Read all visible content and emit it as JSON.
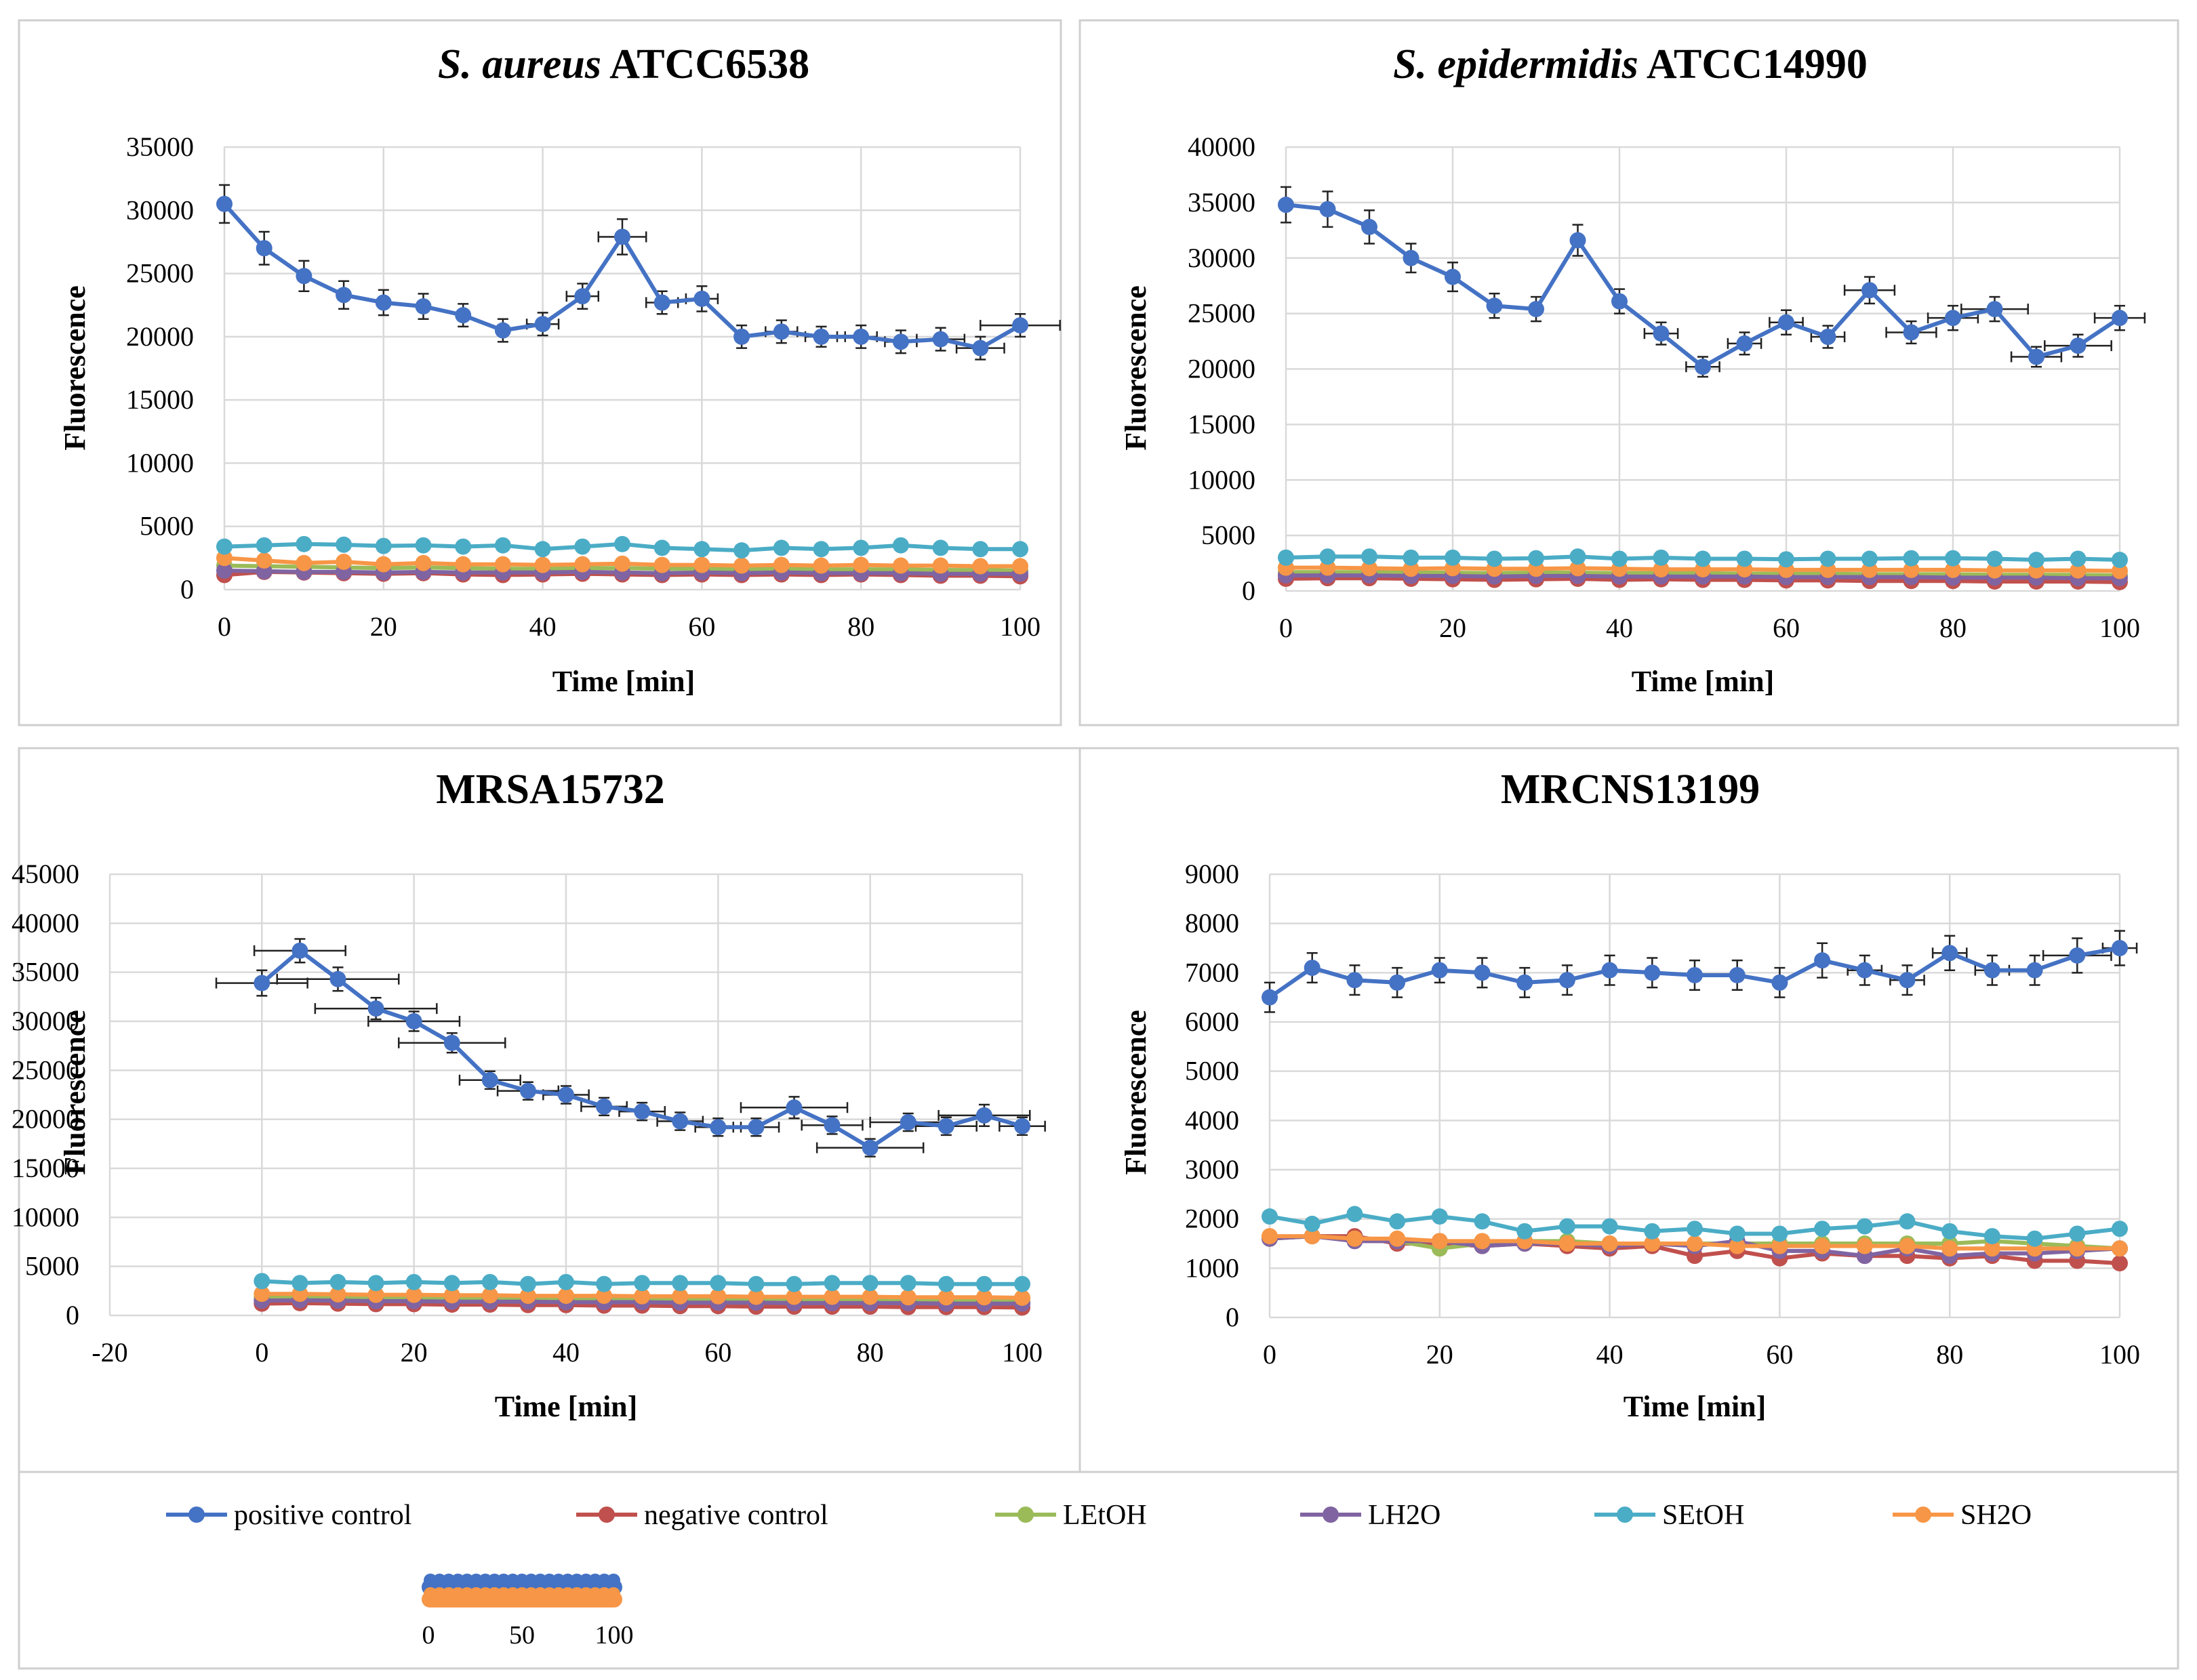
{
  "chart_data": [
    {
      "type": "line",
      "title_italic": "S. aureus",
      "title_rest": " ATCC6538",
      "xlabel": "Time [min]",
      "ylabel": "Fluorescence",
      "xlim": [
        0,
        100
      ],
      "ylim": [
        0,
        35000
      ],
      "xticks": [
        0,
        20,
        40,
        60,
        80,
        100
      ],
      "yticks": [
        0,
        5000,
        10000,
        15000,
        20000,
        25000,
        30000,
        35000
      ],
      "x": [
        0,
        5,
        10,
        15,
        20,
        25,
        30,
        35,
        40,
        45,
        50,
        55,
        60,
        65,
        70,
        75,
        80,
        85,
        90,
        95,
        100
      ],
      "series": [
        {
          "name": "negative control",
          "values": [
            1150,
            1400,
            1350,
            1300,
            1250,
            1300,
            1200,
            1150,
            1200,
            1250,
            1200,
            1150,
            1200,
            1150,
            1200,
            1150,
            1200,
            1150,
            1100,
            1100,
            1050
          ]
        },
        {
          "name": "LEtOH",
          "values": [
            1900,
            1850,
            1800,
            1750,
            1700,
            1750,
            1700,
            1650,
            1650,
            1700,
            1700,
            1650,
            1650,
            1600,
            1650,
            1600,
            1600,
            1600,
            1550,
            1550,
            1500
          ]
        },
        {
          "name": "LH2O",
          "values": [
            1500,
            1450,
            1400,
            1400,
            1350,
            1400,
            1350,
            1350,
            1350,
            1400,
            1350,
            1300,
            1350,
            1300,
            1350,
            1300,
            1300,
            1300,
            1250,
            1250,
            1250
          ]
        },
        {
          "name": "SH2O",
          "values": [
            2500,
            2300,
            2100,
            2200,
            2000,
            2100,
            2000,
            2000,
            1950,
            2000,
            2050,
            1950,
            1950,
            1900,
            1950,
            1900,
            1950,
            1900,
            1900,
            1850,
            1850
          ]
        },
        {
          "name": "SEtOH",
          "values": [
            3400,
            3500,
            3600,
            3550,
            3450,
            3500,
            3400,
            3500,
            3200,
            3400,
            3600,
            3300,
            3200,
            3100,
            3300,
            3200,
            3300,
            3500,
            3300,
            3200,
            3200
          ]
        },
        {
          "name": "positive control",
          "values": [
            30500,
            27000,
            24800,
            23300,
            22700,
            22400,
            21700,
            20500,
            21000,
            23200,
            27900,
            22700,
            23000,
            20000,
            20400,
            20000,
            20000,
            19600,
            19800,
            19100,
            20900
          ]
        }
      ],
      "yerr_positive": [
        1500,
        1300,
        1200,
        1100,
        1000,
        1000,
        900,
        900,
        900,
        1000,
        1400,
        900,
        1000,
        900,
        900,
        800,
        900,
        900,
        900,
        900,
        900
      ],
      "xerr_positive": [
        0,
        0,
        0,
        0,
        0,
        0,
        0,
        0,
        2,
        2,
        3,
        2,
        2,
        0,
        2,
        2,
        2,
        2,
        3,
        3,
        5
      ]
    },
    {
      "type": "line",
      "title_italic": "S. epidermidis",
      "title_rest": " ATCC14990",
      "xlabel": "Time [min]",
      "ylabel": "Fluorescence",
      "xlim": [
        0,
        100
      ],
      "ylim": [
        0,
        40000
      ],
      "xticks": [
        0,
        20,
        40,
        60,
        80,
        100
      ],
      "yticks": [
        0,
        5000,
        10000,
        15000,
        20000,
        25000,
        30000,
        35000,
        40000
      ],
      "x": [
        0,
        5,
        10,
        15,
        20,
        25,
        30,
        35,
        40,
        45,
        50,
        55,
        60,
        65,
        70,
        75,
        80,
        85,
        90,
        95,
        100
      ],
      "series": [
        {
          "name": "negative control",
          "values": [
            1100,
            1150,
            1150,
            1100,
            1050,
            1000,
            1050,
            1100,
            1000,
            1050,
            1000,
            1000,
            950,
            950,
            900,
            900,
            900,
            850,
            850,
            850,
            800
          ]
        },
        {
          "name": "LEtOH",
          "values": [
            1700,
            1700,
            1700,
            1650,
            1650,
            1600,
            1650,
            1650,
            1600,
            1600,
            1600,
            1550,
            1550,
            1550,
            1500,
            1500,
            1500,
            1450,
            1450,
            1450,
            1400
          ]
        },
        {
          "name": "LH2O",
          "values": [
            1400,
            1400,
            1400,
            1350,
            1350,
            1300,
            1350,
            1350,
            1300,
            1300,
            1300,
            1300,
            1250,
            1250,
            1250,
            1250,
            1200,
            1200,
            1200,
            1150,
            1150
          ]
        },
        {
          "name": "SH2O",
          "values": [
            2100,
            2100,
            2050,
            2000,
            2050,
            2000,
            2000,
            2050,
            2000,
            1950,
            1950,
            1950,
            1900,
            1900,
            1900,
            1900,
            1900,
            1850,
            1850,
            1850,
            1800
          ]
        },
        {
          "name": "SEtOH",
          "values": [
            3000,
            3100,
            3100,
            3000,
            3000,
            2900,
            2950,
            3100,
            2900,
            3000,
            2900,
            2900,
            2850,
            2900,
            2900,
            2950,
            2950,
            2900,
            2800,
            2900,
            2800
          ]
        },
        {
          "name": "positive control",
          "values": [
            34800,
            34400,
            32800,
            30000,
            28300,
            25700,
            25400,
            31600,
            26100,
            23200,
            20200,
            22300,
            24200,
            22900,
            27100,
            23300,
            24600,
            25400,
            21100,
            22100,
            24600
          ]
        }
      ],
      "yerr_positive": [
        1600,
        1600,
        1500,
        1300,
        1300,
        1100,
        1100,
        1400,
        1100,
        1000,
        900,
        1000,
        1100,
        1000,
        1200,
        1000,
        1100,
        1100,
        900,
        1000,
        1100
      ],
      "xerr_positive": [
        0,
        0,
        0,
        0,
        0,
        0,
        0,
        0,
        0,
        2,
        2,
        2,
        2,
        2,
        3,
        3,
        3,
        4,
        3,
        4,
        3
      ]
    },
    {
      "type": "line",
      "title_italic": "",
      "title_rest": "MRSA15732",
      "xlabel": "Time [min]",
      "ylabel": "Fluorescence",
      "xlim": [
        -20,
        100
      ],
      "ylim": [
        0,
        45000
      ],
      "xticks": [
        -20,
        0,
        20,
        40,
        60,
        80,
        100
      ],
      "yticks": [
        0,
        5000,
        10000,
        15000,
        20000,
        25000,
        30000,
        35000,
        40000,
        45000
      ],
      "x": [
        0,
        5,
        10,
        15,
        20,
        25,
        30,
        35,
        40,
        45,
        50,
        55,
        60,
        65,
        70,
        75,
        80,
        85,
        90,
        95,
        100
      ],
      "series": [
        {
          "name": "negative control",
          "values": [
            1200,
            1250,
            1200,
            1150,
            1150,
            1100,
            1100,
            1050,
            1050,
            1000,
            1000,
            950,
            950,
            900,
            900,
            900,
            900,
            850,
            850,
            850,
            800
          ]
        },
        {
          "name": "LEtOH",
          "values": [
            1800,
            1800,
            1800,
            1750,
            1750,
            1700,
            1700,
            1650,
            1650,
            1600,
            1600,
            1600,
            1550,
            1550,
            1550,
            1500,
            1500,
            1500,
            1450,
            1450,
            1450
          ]
        },
        {
          "name": "LH2O",
          "values": [
            1500,
            1550,
            1500,
            1450,
            1450,
            1400,
            1400,
            1400,
            1350,
            1350,
            1350,
            1300,
            1300,
            1300,
            1250,
            1250,
            1250,
            1250,
            1200,
            1200,
            1200
          ]
        },
        {
          "name": "SH2O",
          "values": [
            2200,
            2200,
            2150,
            2100,
            2100,
            2050,
            2050,
            2000,
            2000,
            2000,
            1950,
            1950,
            1950,
            1900,
            1900,
            1900,
            1900,
            1850,
            1850,
            1850,
            1800
          ]
        },
        {
          "name": "SEtOH",
          "values": [
            3500,
            3300,
            3400,
            3300,
            3400,
            3300,
            3400,
            3200,
            3400,
            3200,
            3300,
            3300,
            3300,
            3200,
            3200,
            3300,
            3300,
            3300,
            3200,
            3200,
            3200
          ]
        },
        {
          "name": "positive control",
          "values": [
            33900,
            37200,
            34300,
            31300,
            30000,
            27800,
            24000,
            22900,
            22500,
            21300,
            20800,
            19800,
            19200,
            19200,
            21200,
            19400,
            17100,
            19700,
            19300,
            20400,
            19300
          ]
        }
      ],
      "yerr_positive": [
        1300,
        1200,
        1200,
        1100,
        1000,
        1000,
        900,
        900,
        900,
        900,
        900,
        900,
        900,
        900,
        1100,
        900,
        900,
        900,
        900,
        1100,
        900
      ],
      "xerr_positive": [
        6,
        6,
        8,
        8,
        6,
        7,
        4,
        4,
        3,
        3,
        3,
        3,
        3,
        3,
        7,
        4,
        7,
        5,
        4,
        6,
        3
      ]
    },
    {
      "type": "line",
      "title_italic": "",
      "title_rest": "MRCNS13199",
      "xlabel": "Time [min]",
      "ylabel": "Fluorescence",
      "xlim": [
        0,
        100
      ],
      "ylim": [
        0,
        9000
      ],
      "xticks": [
        0,
        20,
        40,
        60,
        80,
        100
      ],
      "yticks": [
        0,
        1000,
        2000,
        3000,
        4000,
        5000,
        6000,
        7000,
        8000,
        9000
      ],
      "x": [
        0,
        5,
        10,
        15,
        20,
        25,
        30,
        35,
        40,
        45,
        50,
        55,
        60,
        65,
        70,
        75,
        80,
        85,
        90,
        95,
        100
      ],
      "series": [
        {
          "name": "negative control",
          "values": [
            1600,
            1650,
            1650,
            1500,
            1500,
            1450,
            1500,
            1450,
            1400,
            1450,
            1250,
            1350,
            1200,
            1300,
            1250,
            1250,
            1200,
            1250,
            1150,
            1150,
            1100
          ]
        },
        {
          "name": "LEtOH",
          "values": [
            1600,
            1650,
            1600,
            1550,
            1400,
            1500,
            1550,
            1550,
            1500,
            1500,
            1500,
            1500,
            1500,
            1500,
            1500,
            1500,
            1500,
            1550,
            1500,
            1450,
            1400
          ]
        },
        {
          "name": "LH2O",
          "values": [
            1600,
            1650,
            1550,
            1550,
            1550,
            1450,
            1500,
            1500,
            1450,
            1500,
            1450,
            1550,
            1350,
            1350,
            1250,
            1400,
            1250,
            1300,
            1300,
            1350,
            1400
          ]
        },
        {
          "name": "SH2O",
          "values": [
            1650,
            1650,
            1600,
            1600,
            1550,
            1550,
            1550,
            1500,
            1500,
            1500,
            1500,
            1450,
            1450,
            1450,
            1450,
            1450,
            1400,
            1400,
            1400,
            1400,
            1400
          ]
        },
        {
          "name": "SEtOH",
          "values": [
            2050,
            1900,
            2100,
            1950,
            2050,
            1950,
            1750,
            1850,
            1850,
            1750,
            1800,
            1700,
            1700,
            1800,
            1850,
            1950,
            1750,
            1650,
            1600,
            1700,
            1800
          ]
        },
        {
          "name": "positive control",
          "values": [
            6500,
            7100,
            6850,
            6800,
            7050,
            7000,
            6800,
            6850,
            7050,
            7000,
            6950,
            6950,
            6800,
            7250,
            7050,
            6850,
            7400,
            7050,
            7050,
            7350,
            7500
          ]
        }
      ],
      "yerr_positive": [
        300,
        300,
        300,
        300,
        250,
        300,
        300,
        300,
        300,
        300,
        300,
        300,
        300,
        350,
        300,
        300,
        350,
        300,
        300,
        350,
        350
      ],
      "xerr_positive": [
        0,
        0,
        0,
        0,
        0,
        0,
        0,
        0,
        0,
        0,
        0,
        0,
        0,
        0,
        2,
        2,
        2,
        2,
        0,
        4,
        2
      ]
    }
  ],
  "legend": {
    "items": [
      {
        "label": "positive control",
        "color": "#4472c4"
      },
      {
        "label": "negative control",
        "color": "#c0504d"
      },
      {
        "label": "LEtOH",
        "color": "#9bbb59"
      },
      {
        "label": "LH2O",
        "color": "#8064a2"
      },
      {
        "label": "SEtOH",
        "color": "#4bacc6"
      },
      {
        "label": "SH2O",
        "color": "#f79646"
      }
    ],
    "mini_axis_ticks": [
      "0",
      "50",
      "100"
    ]
  },
  "colors": {
    "positive control": "#4472c4",
    "negative control": "#c0504d",
    "LEtOH": "#9bbb59",
    "LH2O": "#8064a2",
    "SEtOH": "#4bacc6",
    "SH2O": "#f79646",
    "grid": "#d9d9d9",
    "panel_border": "#cfcfcf",
    "text": "#000000"
  }
}
